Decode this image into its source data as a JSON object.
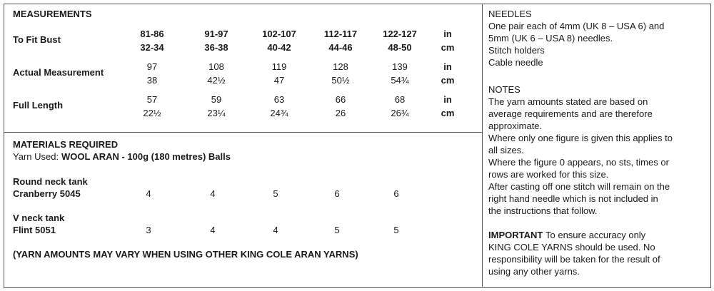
{
  "measurements": {
    "title": "MEASUREMENTS",
    "units": [
      "in",
      "cm"
    ],
    "rows": [
      {
        "label": "To Fit Bust",
        "in": [
          "81-86",
          "91-97",
          "102-107",
          "112-117",
          "122-127"
        ],
        "cm": [
          "32-34",
          "36-38",
          "40-42",
          "44-46",
          "48-50"
        ]
      },
      {
        "label": "Actual Measurement",
        "in": [
          "97",
          "108",
          "119",
          "128",
          "139"
        ],
        "cm": [
          "38",
          "42½",
          "47",
          "50½",
          "54¾"
        ]
      },
      {
        "label": "Full Length",
        "in": [
          "57",
          "59",
          "63",
          "66",
          "68"
        ],
        "cm": [
          "22½",
          "23¼",
          "24¾",
          "26",
          "26¾"
        ]
      }
    ]
  },
  "materials": {
    "title": "MATERIALS REQUIRED",
    "yarn_label": "Yarn Used:",
    "yarn": "WOOL ARAN - 100g (180 metres) Balls",
    "items": [
      {
        "name": "Round neck tank",
        "shade": "Cranberry 5045",
        "amounts": [
          "4",
          "4",
          "5",
          "6",
          "6"
        ]
      },
      {
        "name": "V neck tank",
        "shade": "Flint 5051",
        "amounts": [
          "3",
          "4",
          "4",
          "5",
          "5"
        ]
      }
    ],
    "note": "(YARN AMOUNTS MAY VARY WHEN USING OTHER KING COLE ARAN YARNS)"
  },
  "needles": {
    "title": "NEEDLES",
    "lines": [
      "One pair each of 4mm (UK 8 – USA 6) and",
      "5mm (UK 6 – USA 8) needles.",
      "Stitch holders",
      "Cable needle"
    ]
  },
  "notes": {
    "title": "NOTES",
    "lines": [
      "The yarn amounts stated are based on",
      "average requirements and are therefore",
      "approximate.",
      "Where only one figure is given this applies to",
      "all sizes.",
      "Where the figure 0 appears, no sts, times or",
      "rows are worked for this size.",
      "After casting off one stitch will remain on the",
      "right hand needle which is not included in",
      "the instructions that follow."
    ]
  },
  "important": {
    "title": "IMPORTANT",
    "lines": [
      "To ensure accuracy only",
      "KING COLE YARNS should be used. No",
      "responsibility will be taken for the result of",
      "using any other yarns."
    ]
  }
}
